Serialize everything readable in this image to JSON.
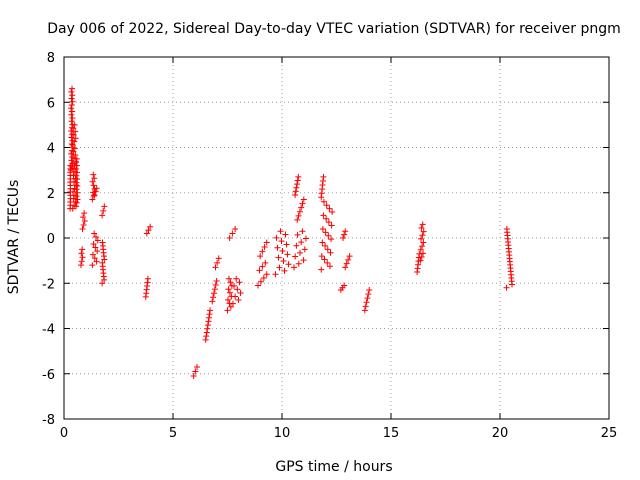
{
  "chart_data": {
    "type": "scatter",
    "title": "Day 006 of 2022, Sidereal Day-to-day VTEC variation (SDTVAR) for receiver pngm",
    "xlabel": "GPS time / hours",
    "ylabel": "SDTVAR / TECUs",
    "xlim": [
      0,
      25
    ],
    "ylim": [
      -8,
      8
    ],
    "xticks": [
      0,
      5,
      10,
      15,
      20,
      25
    ],
    "yticks": [
      -8,
      -6,
      -4,
      -2,
      0,
      2,
      4,
      6,
      8
    ],
    "grid": true,
    "marker": "+",
    "color": "#ff0000",
    "segments": [
      [
        0.28,
        0.3,
        1.3,
        3.2
      ],
      [
        0.32,
        0.4,
        3.0,
        6.6
      ],
      [
        0.4,
        0.55,
        1.3,
        5.0
      ],
      [
        0.55,
        0.62,
        1.4,
        3.5
      ],
      [
        0.78,
        0.85,
        -1.2,
        -0.5
      ],
      [
        0.85,
        0.95,
        0.4,
        1.1
      ],
      [
        1.3,
        1.4,
        1.7,
        2.8
      ],
      [
        1.4,
        1.5,
        1.9,
        2.2
      ],
      [
        1.3,
        1.55,
        -1.2,
        0.2
      ],
      [
        1.75,
        1.85,
        1.0,
        1.4
      ],
      [
        1.75,
        1.85,
        -2.0,
        -0.2
      ],
      [
        3.75,
        3.85,
        -2.6,
        -1.8
      ],
      [
        3.8,
        3.95,
        0.2,
        0.5
      ],
      [
        5.95,
        6.1,
        -6.1,
        -5.7
      ],
      [
        6.5,
        6.7,
        -4.5,
        -3.2
      ],
      [
        6.8,
        7.0,
        -2.8,
        -1.9
      ],
      [
        6.95,
        7.1,
        -1.3,
        -0.9
      ],
      [
        7.5,
        7.7,
        -3.2,
        -1.8
      ],
      [
        7.6,
        7.85,
        0.0,
        0.4
      ],
      [
        7.75,
        8.1,
        -2.9,
        -1.8
      ],
      [
        8.9,
        9.3,
        -2.1,
        -1.1
      ],
      [
        9.0,
        9.3,
        -0.8,
        -0.2
      ],
      [
        9.7,
        10.3,
        -1.6,
        0.3
      ],
      [
        10.6,
        10.75,
        1.9,
        2.7
      ],
      [
        10.7,
        11.0,
        0.8,
        1.7
      ],
      [
        10.55,
        11.1,
        -1.3,
        0.3
      ],
      [
        11.8,
        11.9,
        1.8,
        2.7
      ],
      [
        11.8,
        12.3,
        -1.4,
        1.6
      ],
      [
        12.7,
        12.85,
        -2.3,
        -2.1
      ],
      [
        12.8,
        12.9,
        0.0,
        0.3
      ],
      [
        12.9,
        13.1,
        -1.3,
        -0.8
      ],
      [
        13.8,
        14.0,
        -3.2,
        -2.3
      ],
      [
        16.2,
        16.3,
        -1.5,
        -0.7
      ],
      [
        16.35,
        16.5,
        -1.0,
        0.6
      ],
      [
        20.3,
        20.55,
        -2.2,
        0.4
      ]
    ]
  }
}
